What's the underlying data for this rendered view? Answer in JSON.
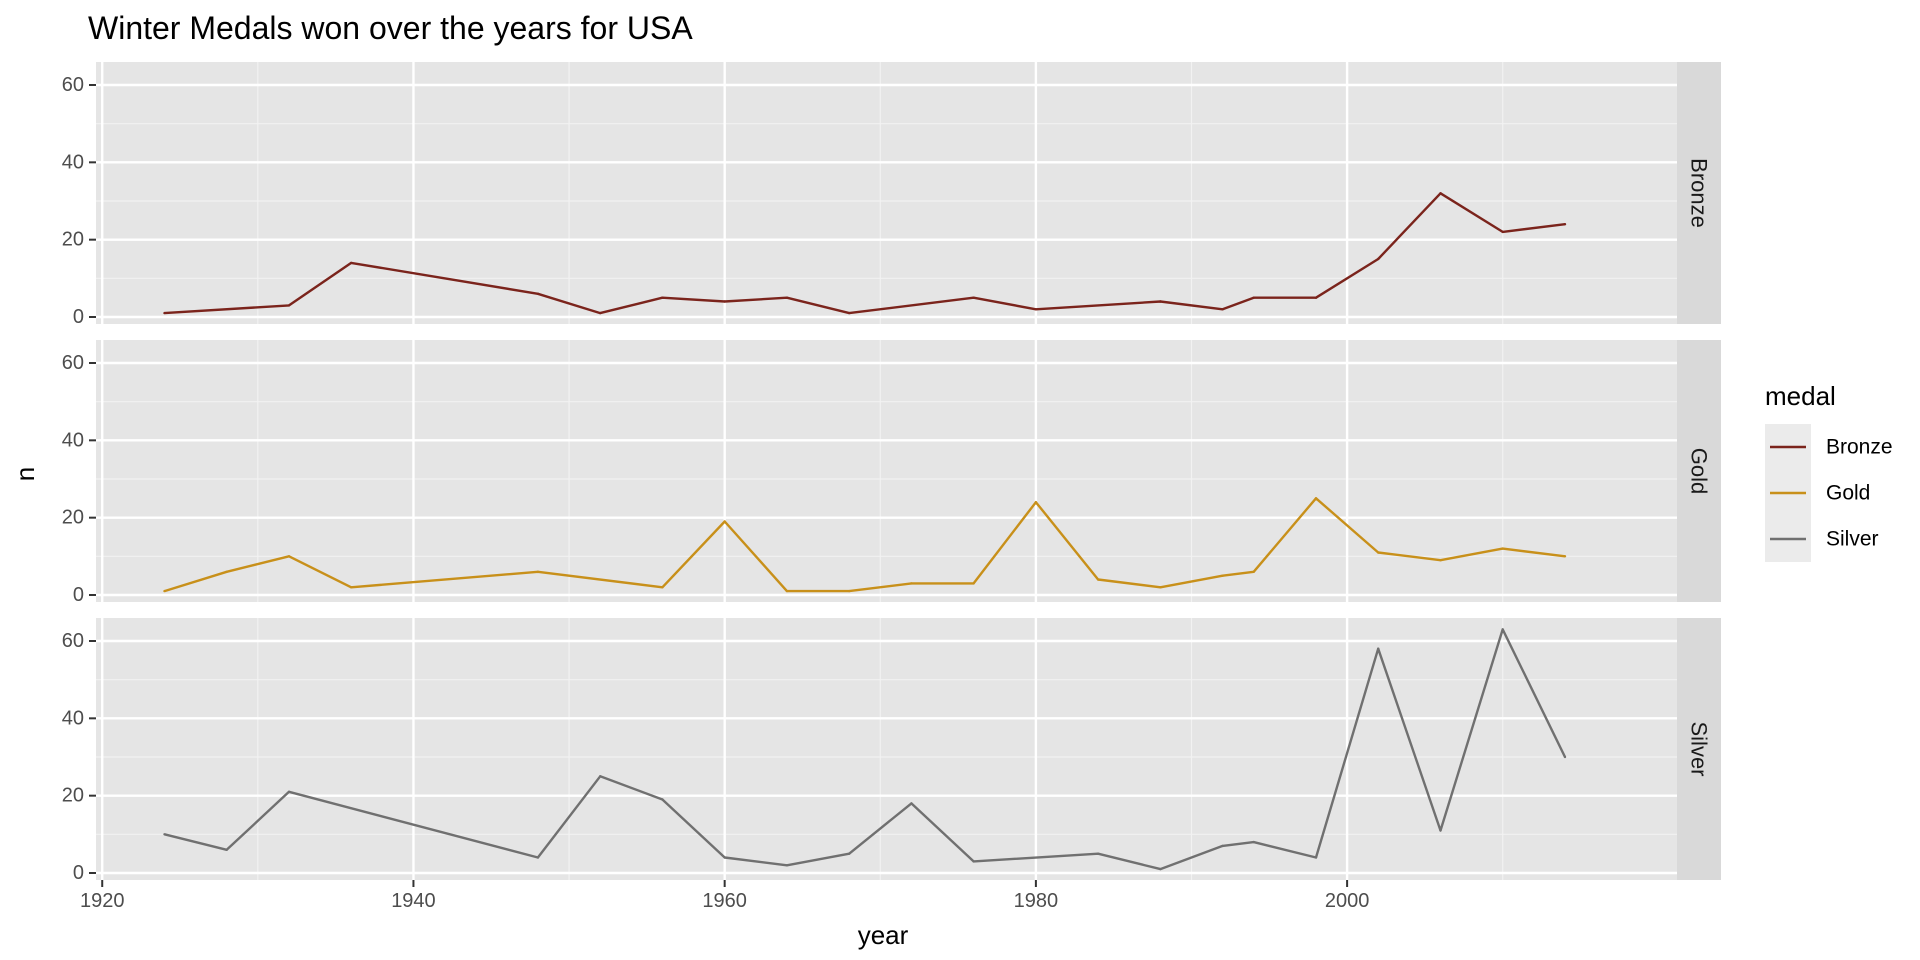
{
  "chart_data": {
    "type": "line",
    "title": "Winter Medals won over the years for USA",
    "xlabel": "year",
    "ylabel": "n",
    "xlim": [
      1920,
      2020
    ],
    "ylim": [
      0,
      65
    ],
    "x_ticks": [
      "1920",
      "1940",
      "1960",
      "1980",
      "2000"
    ],
    "y_ticks": [
      "0",
      "20",
      "40",
      "60"
    ],
    "grid": true,
    "facet": "rows",
    "legend": {
      "title": "medal",
      "position": "right"
    },
    "series": [
      {
        "name": "Bronze",
        "color": "#7B241C",
        "x": [
          1924,
          1932,
          1936,
          1948,
          1952,
          1956,
          1960,
          1964,
          1968,
          1976,
          1980,
          1988,
          1992,
          1994,
          1998,
          2002,
          2006,
          2010,
          2014
        ],
        "y": [
          1,
          3,
          14,
          6,
          1,
          5,
          4,
          5,
          1,
          5,
          2,
          4,
          2,
          5,
          5,
          15,
          32,
          22,
          24
        ]
      },
      {
        "name": "Gold",
        "color": "#C8901A",
        "x": [
          1924,
          1928,
          1932,
          1936,
          1948,
          1956,
          1960,
          1964,
          1968,
          1972,
          1976,
          1980,
          1984,
          1988,
          1992,
          1994,
          1998,
          2002,
          2006,
          2010,
          2014
        ],
        "y": [
          1,
          6,
          10,
          2,
          6,
          2,
          19,
          1,
          1,
          3,
          3,
          24,
          4,
          2,
          5,
          6,
          25,
          11,
          9,
          12,
          10
        ]
      },
      {
        "name": "Silver",
        "color": "#707070",
        "x": [
          1924,
          1928,
          1932,
          1948,
          1952,
          1956,
          1960,
          1964,
          1968,
          1972,
          1976,
          1984,
          1988,
          1992,
          1994,
          1998,
          2002,
          2006,
          2010,
          2014
        ],
        "y": [
          10,
          6,
          21,
          4,
          25,
          19,
          4,
          2,
          5,
          18,
          3,
          5,
          1,
          7,
          8,
          4,
          58,
          11,
          63,
          30
        ]
      }
    ]
  }
}
